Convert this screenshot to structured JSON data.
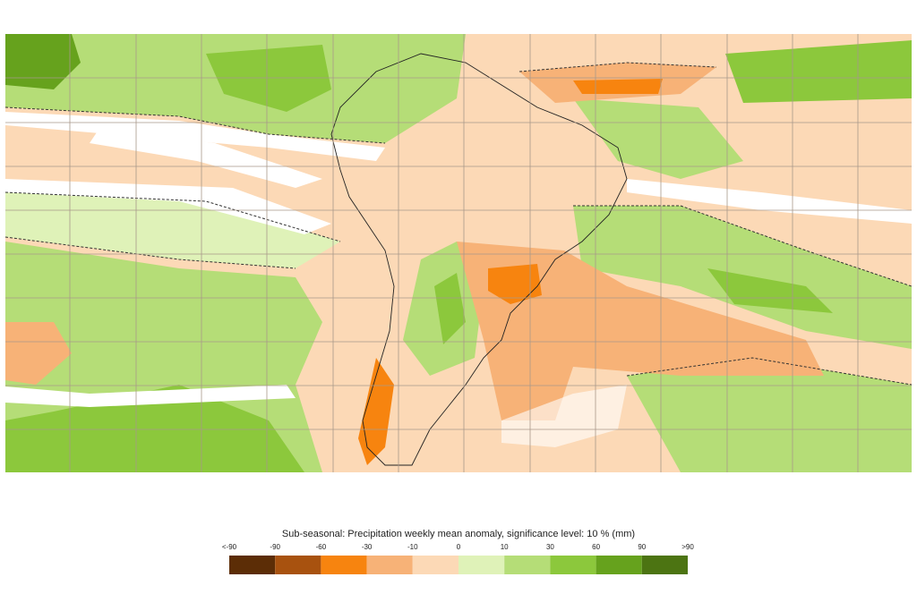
{
  "legend": {
    "title": "Sub-seasonal: Precipitation weekly mean anomaly, significance level: 10 % (mm)",
    "labels": [
      "<-90",
      "-90",
      "-60",
      "-30",
      "-10",
      "0",
      "10",
      "30",
      "60",
      "90",
      ">90"
    ],
    "colors": [
      "#5c2d06",
      "#a8520f",
      "#f7840f",
      "#f7b277",
      "#fcd9b6",
      "#dff2b8",
      "#b5dd77",
      "#8cc83c",
      "#66a21d",
      "#4c7412"
    ]
  }
}
